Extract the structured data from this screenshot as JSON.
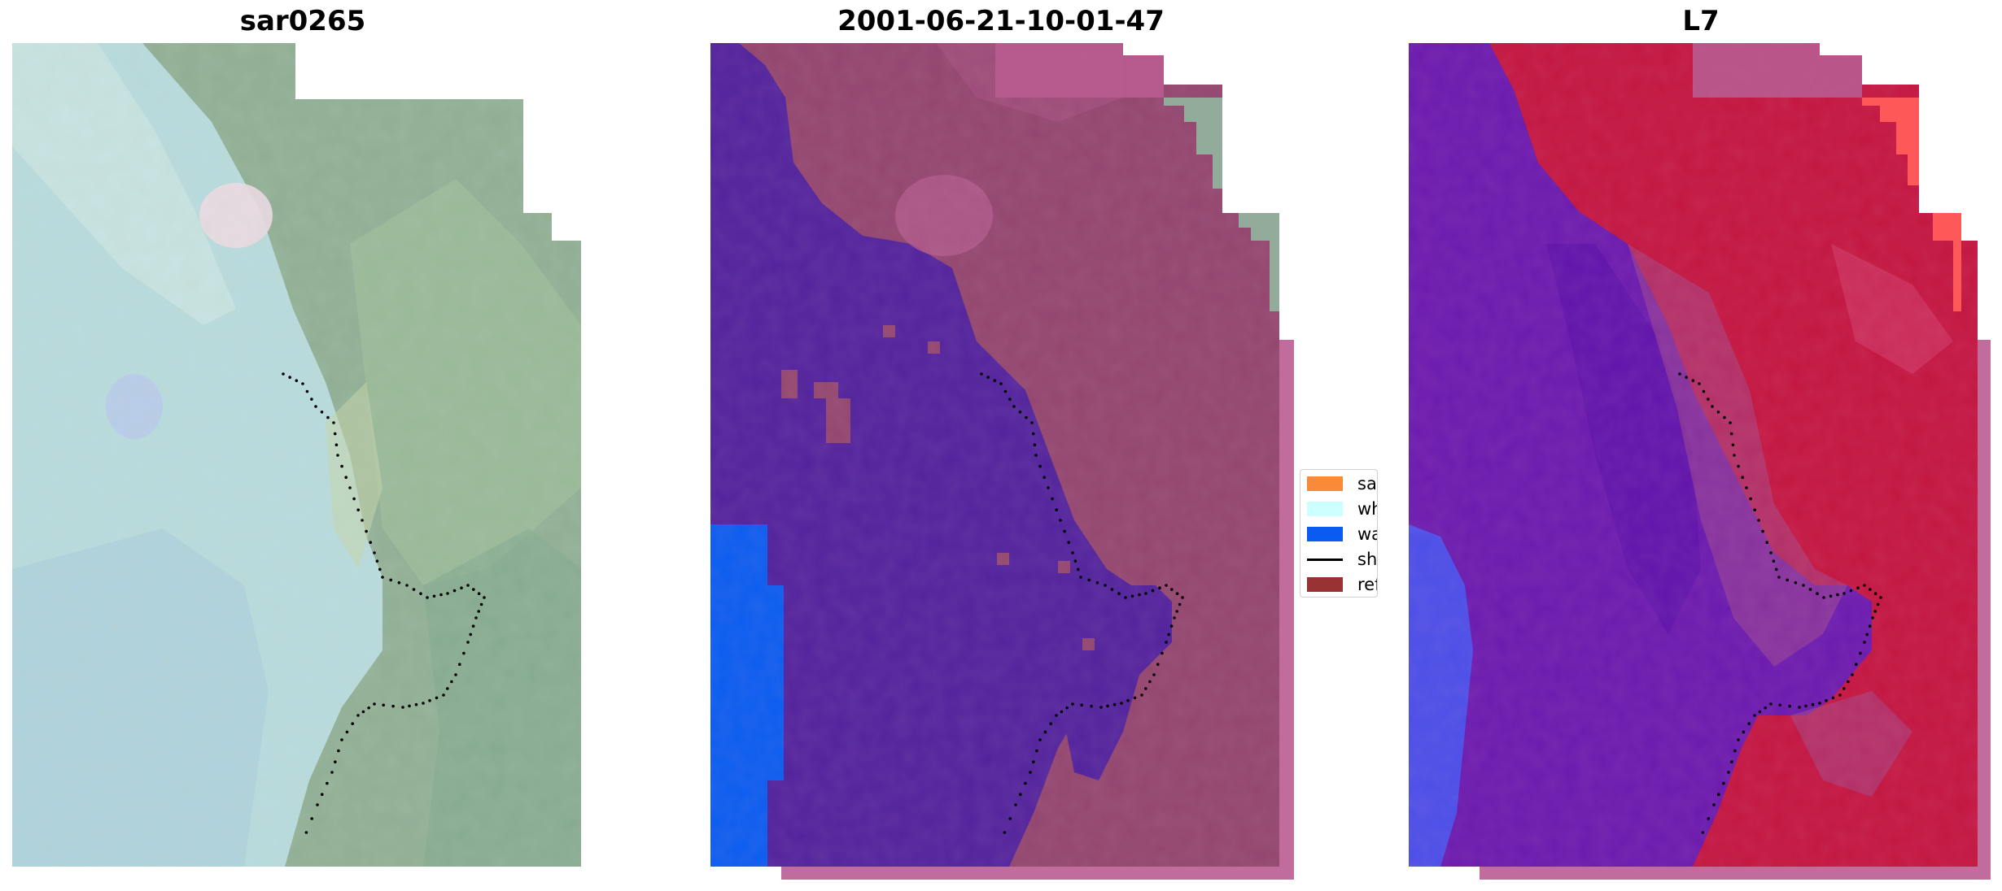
{
  "panels": [
    {
      "id": "rgb",
      "title": "sar0265"
    },
    {
      "id": "classified",
      "title": "2001-06-21-10-01-47"
    },
    {
      "id": "index",
      "title": "L7"
    }
  ],
  "legend": {
    "items": [
      {
        "label": "sand",
        "type": "patch",
        "color": "#f98b38"
      },
      {
        "label": "whitew",
        "type": "patch",
        "color": "#ccffff"
      },
      {
        "label": "water",
        "type": "patch",
        "color": "#0a5cf0"
      },
      {
        "label": "shorel",
        "type": "line",
        "color": "#000000"
      },
      {
        "label": "referen",
        "type": "patch",
        "color": "#993333"
      }
    ]
  },
  "colors": {
    "rgb_water": "#b9dcdf",
    "rgb_land": "#8fae94",
    "class_water": "#51239c",
    "class_water_blue": "#0a5cf0",
    "class_land": "#92466f",
    "class_overlay": "#b95c91",
    "index_water": "#6a1aae",
    "index_land": "#c21641",
    "index_overlay": "#b95c91",
    "shoreline": "#000000"
  }
}
